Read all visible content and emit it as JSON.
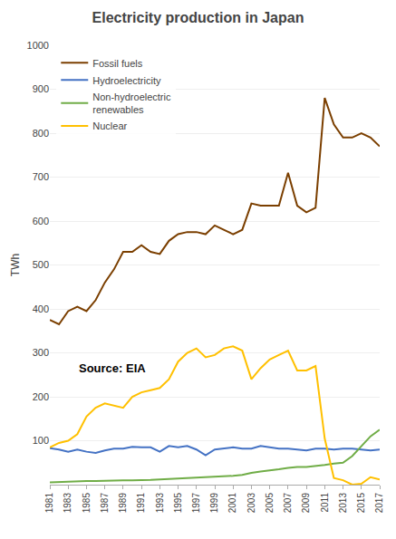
{
  "chart_data": {
    "type": "line",
    "title": "Electricity production in Japan",
    "ylabel": "TWh",
    "x": [
      1981,
      1982,
      1983,
      1984,
      1985,
      1986,
      1987,
      1988,
      1989,
      1990,
      1991,
      1992,
      1993,
      1994,
      1995,
      1996,
      1997,
      1998,
      1999,
      2000,
      2001,
      2002,
      2003,
      2004,
      2005,
      2006,
      2007,
      2008,
      2009,
      2010,
      2011,
      2012,
      2013,
      2014,
      2015,
      2016,
      2017
    ],
    "series": [
      {
        "name": "Fossil fuels",
        "color": "#7B3F00",
        "values": [
          375,
          365,
          395,
          405,
          395,
          420,
          460,
          490,
          530,
          530,
          545,
          530,
          525,
          555,
          570,
          575,
          575,
          570,
          590,
          580,
          570,
          580,
          640,
          635,
          635,
          635,
          710,
          635,
          620,
          630,
          880,
          820,
          790,
          790,
          800,
          790,
          770
        ]
      },
      {
        "name": "Hydroelectricity",
        "color": "#4472C4",
        "values": [
          83,
          80,
          75,
          80,
          75,
          72,
          78,
          82,
          82,
          86,
          85,
          85,
          75,
          88,
          85,
          88,
          80,
          67,
          80,
          82,
          85,
          82,
          82,
          88,
          85,
          82,
          82,
          80,
          78,
          82,
          82,
          80,
          82,
          82,
          80,
          78,
          80
        ]
      },
      {
        "name": "Non-hydroelectric\nrenewables",
        "color": "#70AD47",
        "values": [
          5,
          6,
          6,
          7,
          8,
          8,
          9,
          9,
          10,
          10,
          10,
          11,
          12,
          13,
          14,
          14,
          16,
          17,
          17,
          18,
          20,
          22,
          27,
          30,
          32,
          35,
          38,
          40,
          40,
          42,
          45,
          48,
          50,
          65,
          88,
          110,
          125
        ]
      },
      {
        "name": "Nuclear",
        "color": "#FFC000",
        "values": [
          85,
          95,
          100,
          115,
          155,
          175,
          185,
          180,
          175,
          200,
          210,
          215,
          220,
          240,
          280,
          300,
          310,
          290,
          295,
          310,
          315,
          305,
          240,
          265,
          285,
          295,
          305,
          260,
          260,
          270,
          105,
          15,
          10,
          0,
          2,
          17,
          12
        ]
      }
    ],
    "xlim": [
      1981,
      2017
    ],
    "xticks": [
      1981,
      1983,
      1985,
      1987,
      1989,
      1991,
      1993,
      1995,
      1997,
      1999,
      2001,
      2003,
      2005,
      2007,
      2009,
      2011,
      2013,
      2015,
      2017
    ],
    "ylim": [
      0,
      1000
    ],
    "yticks": [
      100,
      200,
      300,
      400,
      500,
      600,
      700,
      800,
      900,
      1000
    ],
    "grid": true,
    "legend": "upper left",
    "annotations": [
      {
        "text": "Source: EIA",
        "x": 1984,
        "y": 265
      }
    ]
  }
}
